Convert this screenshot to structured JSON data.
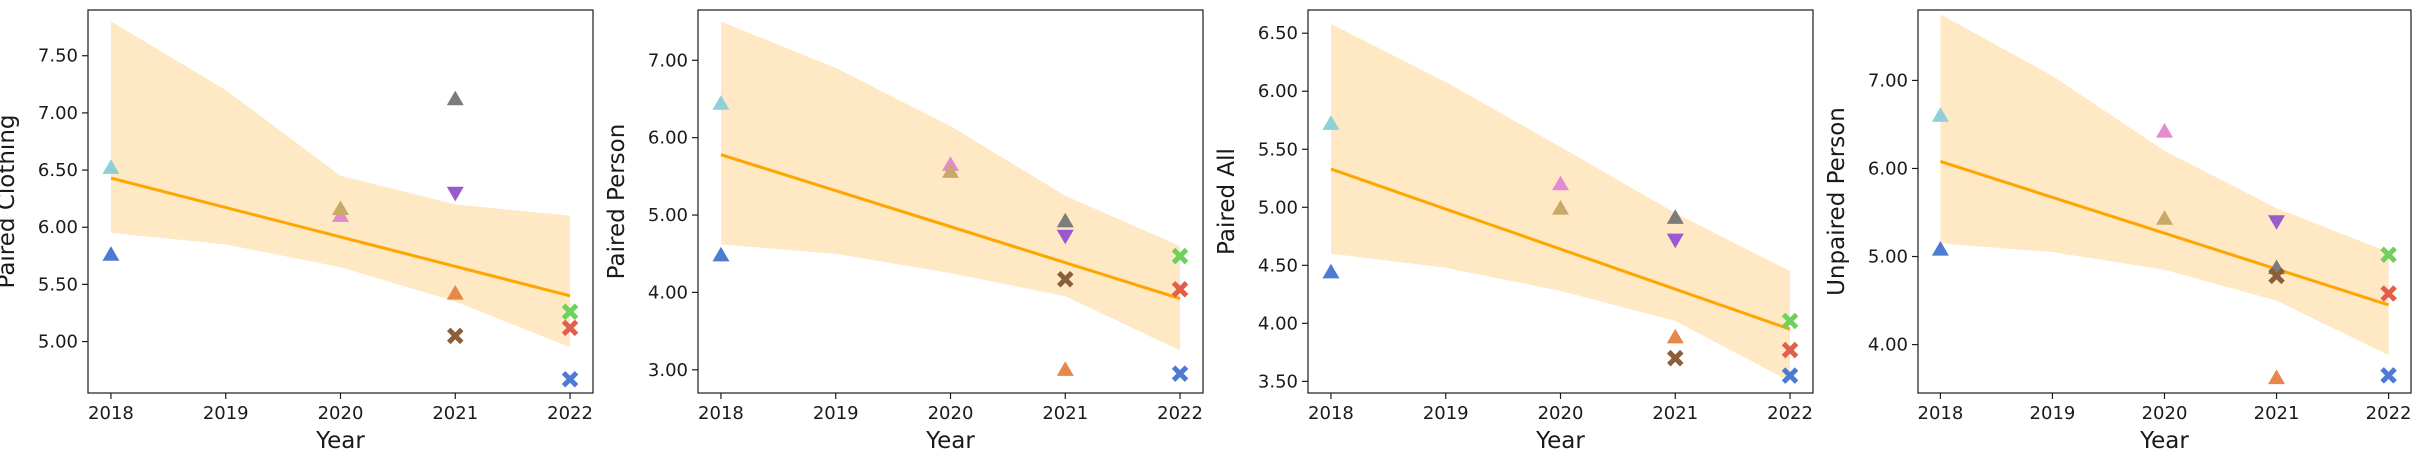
{
  "chart_data": [
    {
      "type": "scatter",
      "xlabel": "Year",
      "ylabel": "Paired Clothing",
      "x_ticks": [
        "2018",
        "2019",
        "2020",
        "2021",
        "2022"
      ],
      "xlim": [
        2017.8,
        2022.2
      ],
      "ylim": [
        4.55,
        7.9
      ],
      "y_ticks": [
        "5.00",
        "5.50",
        "6.00",
        "6.50",
        "7.00",
        "7.50"
      ],
      "regression": {
        "x": [
          2018,
          2022
        ],
        "y": [
          6.43,
          5.4
        ]
      },
      "confidence_band": {
        "x": [
          2018,
          2019,
          2020,
          2021,
          2022
        ],
        "lower": [
          5.95,
          5.85,
          5.65,
          5.35,
          4.95
        ],
        "upper": [
          7.8,
          7.2,
          6.45,
          6.2,
          6.1
        ]
      },
      "points": [
        {
          "x": 2018,
          "y": 6.52,
          "marker": "triangle-up",
          "color": "#8fcfd9"
        },
        {
          "x": 2018,
          "y": 5.76,
          "marker": "triangle-up",
          "color": "#4c7bd1"
        },
        {
          "x": 2020,
          "y": 6.1,
          "marker": "triangle-up",
          "color": "#e38ad0"
        },
        {
          "x": 2020,
          "y": 6.16,
          "marker": "triangle-up",
          "color": "#c8a96a"
        },
        {
          "x": 2021,
          "y": 7.12,
          "marker": "triangle-up",
          "color": "#7c7c7c"
        },
        {
          "x": 2021,
          "y": 6.3,
          "marker": "triangle-down",
          "color": "#9b59d0"
        },
        {
          "x": 2021,
          "y": 5.42,
          "marker": "triangle-up",
          "color": "#e8874a"
        },
        {
          "x": 2021,
          "y": 5.05,
          "marker": "x",
          "color": "#8b5e3c"
        },
        {
          "x": 2022,
          "y": 5.26,
          "marker": "x",
          "color": "#6dd15b"
        },
        {
          "x": 2022,
          "y": 5.12,
          "marker": "x",
          "color": "#e0604d"
        },
        {
          "x": 2022,
          "y": 4.67,
          "marker": "x",
          "color": "#4c7bd1"
        }
      ]
    },
    {
      "type": "scatter",
      "xlabel": "Year",
      "ylabel": "Paired Person",
      "x_ticks": [
        "2018",
        "2019",
        "2020",
        "2021",
        "2022"
      ],
      "xlim": [
        2017.8,
        2022.2
      ],
      "ylim": [
        2.7,
        7.65
      ],
      "y_ticks": [
        "3.00",
        "4.00",
        "5.00",
        "6.00",
        "7.00"
      ],
      "regression": {
        "x": [
          2018,
          2022
        ],
        "y": [
          5.78,
          3.92
        ]
      },
      "confidence_band": {
        "x": [
          2018,
          2019,
          2020,
          2021,
          2022
        ],
        "lower": [
          4.62,
          4.5,
          4.25,
          3.95,
          3.25
        ],
        "upper": [
          7.5,
          6.9,
          6.15,
          5.25,
          4.6
        ]
      },
      "points": [
        {
          "x": 2018,
          "y": 6.44,
          "marker": "triangle-up",
          "color": "#8fcfd9"
        },
        {
          "x": 2018,
          "y": 4.48,
          "marker": "triangle-up",
          "color": "#4c7bd1"
        },
        {
          "x": 2020,
          "y": 5.65,
          "marker": "triangle-up",
          "color": "#e38ad0"
        },
        {
          "x": 2020,
          "y": 5.56,
          "marker": "triangle-up",
          "color": "#c8a96a"
        },
        {
          "x": 2021,
          "y": 4.92,
          "marker": "triangle-up",
          "color": "#7c7c7c"
        },
        {
          "x": 2021,
          "y": 4.73,
          "marker": "triangle-down",
          "color": "#9b59d0"
        },
        {
          "x": 2021,
          "y": 4.17,
          "marker": "x",
          "color": "#8b5e3c"
        },
        {
          "x": 2021,
          "y": 3.0,
          "marker": "triangle-up",
          "color": "#e8874a"
        },
        {
          "x": 2022,
          "y": 4.47,
          "marker": "x",
          "color": "#6dd15b"
        },
        {
          "x": 2022,
          "y": 4.04,
          "marker": "x",
          "color": "#e0604d"
        },
        {
          "x": 2022,
          "y": 2.95,
          "marker": "x",
          "color": "#4c7bd1"
        }
      ]
    },
    {
      "type": "scatter",
      "xlabel": "Year",
      "ylabel": "Paired All",
      "x_ticks": [
        "2018",
        "2019",
        "2020",
        "2021",
        "2022"
      ],
      "xlim": [
        2017.8,
        2022.2
      ],
      "ylim": [
        3.4,
        6.7
      ],
      "y_ticks": [
        "3.50",
        "4.00",
        "4.50",
        "5.00",
        "5.50",
        "6.00",
        "6.50"
      ],
      "regression": {
        "x": [
          2018,
          2022
        ],
        "y": [
          5.33,
          3.95
        ]
      },
      "confidence_band": {
        "x": [
          2018,
          2019,
          2020,
          2021,
          2022
        ],
        "lower": [
          4.6,
          4.48,
          4.28,
          4.02,
          3.5
        ],
        "upper": [
          6.58,
          6.08,
          5.52,
          4.95,
          4.45
        ]
      },
      "points": [
        {
          "x": 2018,
          "y": 5.72,
          "marker": "triangle-up",
          "color": "#8fcfd9"
        },
        {
          "x": 2018,
          "y": 4.44,
          "marker": "triangle-up",
          "color": "#4c7bd1"
        },
        {
          "x": 2020,
          "y": 5.2,
          "marker": "triangle-up",
          "color": "#e38ad0"
        },
        {
          "x": 2020,
          "y": 4.99,
          "marker": "triangle-up",
          "color": "#c8a96a"
        },
        {
          "x": 2021,
          "y": 4.91,
          "marker": "triangle-up",
          "color": "#7c7c7c"
        },
        {
          "x": 2021,
          "y": 4.72,
          "marker": "triangle-down",
          "color": "#9b59d0"
        },
        {
          "x": 2021,
          "y": 3.88,
          "marker": "triangle-up",
          "color": "#e8874a"
        },
        {
          "x": 2021,
          "y": 3.7,
          "marker": "x",
          "color": "#8b5e3c"
        },
        {
          "x": 2022,
          "y": 4.02,
          "marker": "x",
          "color": "#6dd15b"
        },
        {
          "x": 2022,
          "y": 3.77,
          "marker": "x",
          "color": "#e0604d"
        },
        {
          "x": 2022,
          "y": 3.55,
          "marker": "x",
          "color": "#4c7bd1"
        }
      ]
    },
    {
      "type": "scatter",
      "xlabel": "Year",
      "ylabel": "Unpaired Person",
      "x_ticks": [
        "2018",
        "2019",
        "2020",
        "2021",
        "2022"
      ],
      "xlim": [
        2017.8,
        2022.2
      ],
      "ylim": [
        3.45,
        7.8
      ],
      "y_ticks": [
        "4.00",
        "5.00",
        "6.00",
        "7.00"
      ],
      "regression": {
        "x": [
          2018,
          2022
        ],
        "y": [
          6.08,
          4.45
        ]
      },
      "confidence_band": {
        "x": [
          2018,
          2019,
          2020,
          2021,
          2022
        ],
        "lower": [
          5.15,
          5.05,
          4.85,
          4.5,
          3.88
        ],
        "upper": [
          7.75,
          7.05,
          6.2,
          5.55,
          5.05
        ]
      },
      "points": [
        {
          "x": 2018,
          "y": 6.6,
          "marker": "triangle-up",
          "color": "#8fcfd9"
        },
        {
          "x": 2018,
          "y": 5.08,
          "marker": "triangle-up",
          "color": "#4c7bd1"
        },
        {
          "x": 2020,
          "y": 6.42,
          "marker": "triangle-up",
          "color": "#e38ad0"
        },
        {
          "x": 2020,
          "y": 5.43,
          "marker": "triangle-up",
          "color": "#c8a96a"
        },
        {
          "x": 2021,
          "y": 5.4,
          "marker": "triangle-down",
          "color": "#9b59d0"
        },
        {
          "x": 2021,
          "y": 4.87,
          "marker": "triangle-up",
          "color": "#7c7c7c"
        },
        {
          "x": 2021,
          "y": 4.78,
          "marker": "x",
          "color": "#8b5e3c"
        },
        {
          "x": 2021,
          "y": 3.62,
          "marker": "triangle-up",
          "color": "#e8874a"
        },
        {
          "x": 2022,
          "y": 5.02,
          "marker": "x",
          "color": "#6dd15b"
        },
        {
          "x": 2022,
          "y": 4.58,
          "marker": "x",
          "color": "#e0604d"
        },
        {
          "x": 2022,
          "y": 3.65,
          "marker": "x",
          "color": "#4c7bd1"
        }
      ]
    }
  ],
  "colors": {
    "regression_line": "#ffa500",
    "confidence_band": "#ffe8c4",
    "axis": "#1a1a1a"
  }
}
